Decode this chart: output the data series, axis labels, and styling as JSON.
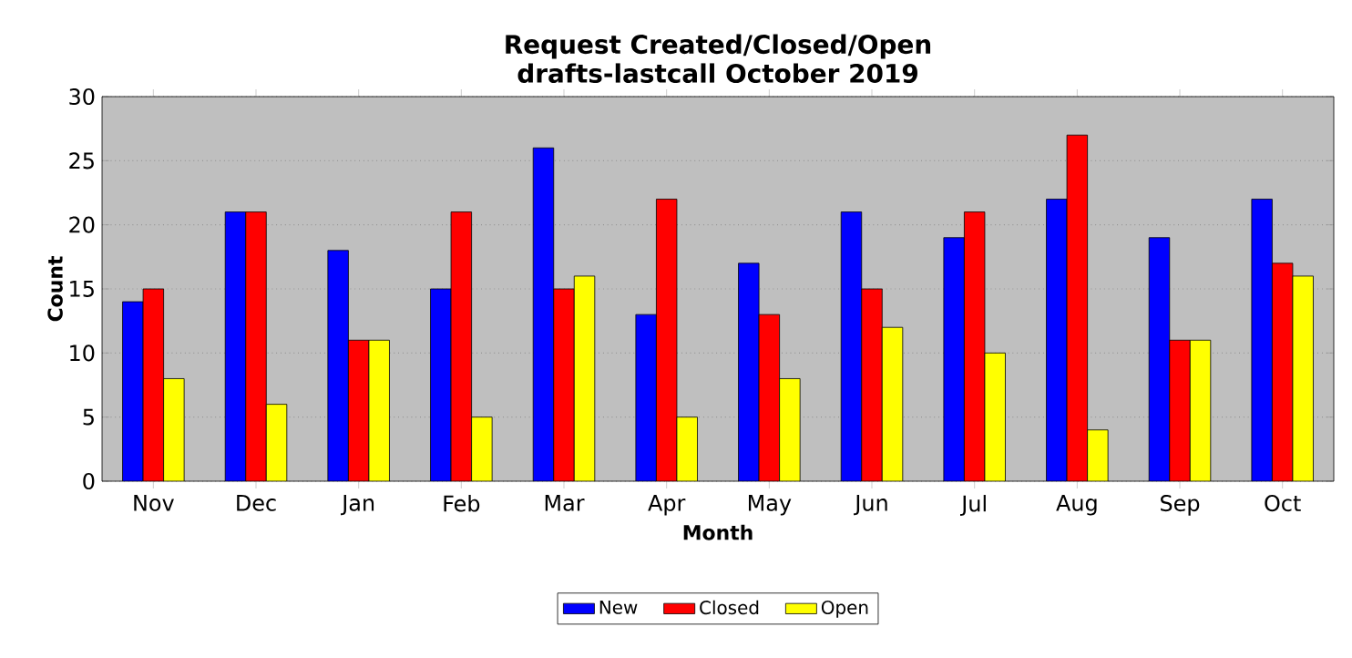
{
  "chart_data": {
    "type": "bar",
    "title": "Request Created/Closed/Open",
    "subtitle": "drafts-lastcall October 2019",
    "xlabel": "Month",
    "ylabel": "Count",
    "categories": [
      "Nov",
      "Dec",
      "Jan",
      "Feb",
      "Mar",
      "Apr",
      "May",
      "Jun",
      "Jul",
      "Aug",
      "Sep",
      "Oct"
    ],
    "series": [
      {
        "name": "New",
        "color": "#0000ff",
        "values": [
          14,
          21,
          18,
          15,
          26,
          13,
          17,
          21,
          19,
          22,
          19,
          22
        ]
      },
      {
        "name": "Closed",
        "color": "#ff0000",
        "values": [
          15,
          21,
          11,
          21,
          15,
          22,
          13,
          15,
          21,
          27,
          11,
          17
        ]
      },
      {
        "name": "Open",
        "color": "#ffff00",
        "values": [
          8,
          6,
          11,
          5,
          16,
          5,
          8,
          12,
          10,
          4,
          11,
          16
        ]
      }
    ],
    "ylim": [
      0,
      30
    ],
    "yticks": [
      0,
      5,
      10,
      15,
      20,
      25,
      30
    ],
    "grid": "y",
    "legend": "bottom"
  }
}
